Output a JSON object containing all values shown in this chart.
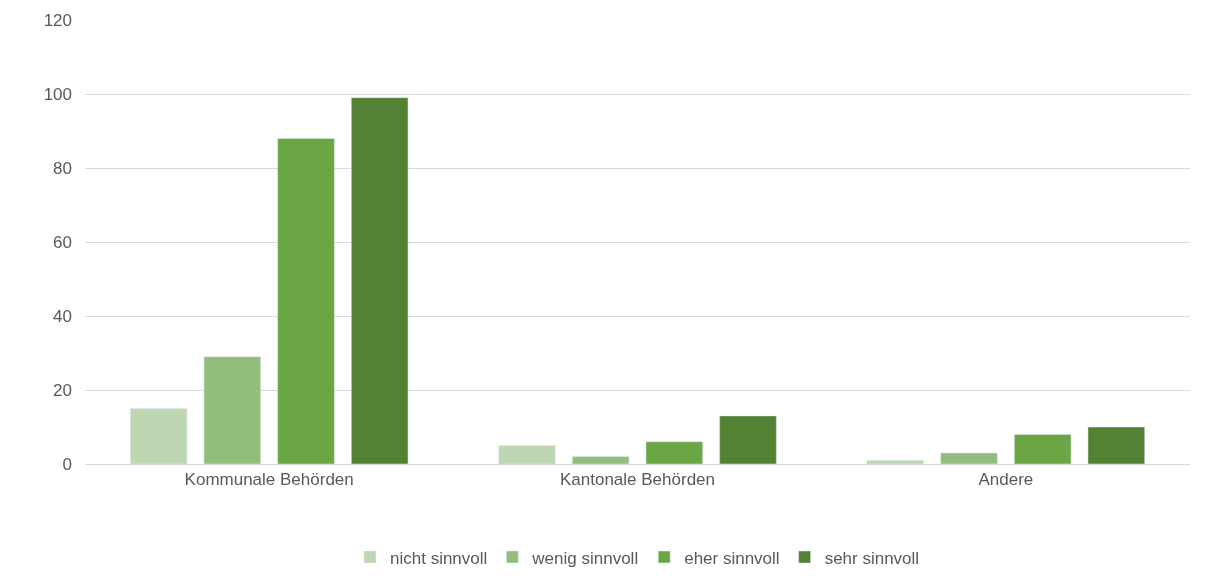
{
  "chart_data": {
    "type": "bar",
    "categories": [
      "Kommunale Behörden",
      "Kantonale Behörden",
      "Andere"
    ],
    "series": [
      {
        "name": "nicht sinnvoll",
        "color": "#bed6b1",
        "values": [
          15,
          5,
          1
        ]
      },
      {
        "name": "wenig sinnvoll",
        "color": "#93bd7c",
        "values": [
          29,
          2,
          3
        ]
      },
      {
        "name": "eher sinnvoll",
        "color": "#6ba644",
        "values": [
          88,
          6,
          8
        ]
      },
      {
        "name": "sehr sinnvoll",
        "color": "#548235",
        "values": [
          99,
          13,
          10
        ]
      }
    ],
    "ylim": [
      0,
      120
    ],
    "yticks": [
      0,
      20,
      40,
      60,
      80,
      100,
      120
    ],
    "grid": "y",
    "legend": "bottom"
  }
}
